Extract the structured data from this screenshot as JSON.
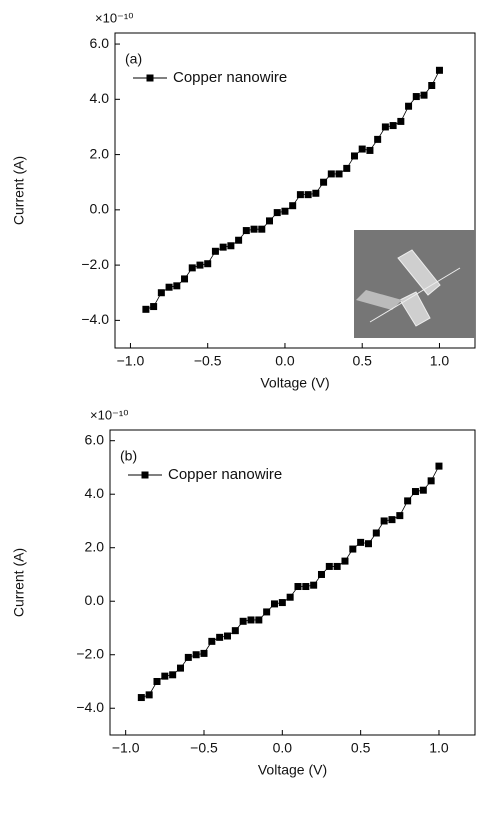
{
  "chart_data": [
    {
      "type": "line",
      "panel_label": "(a)",
      "y_multiplier": "×10⁻¹⁰",
      "xlabel": "Voltage (V)",
      "ylabel": "Current (A)",
      "legend": "upper left",
      "x": [
        -0.9,
        -0.85,
        -0.8,
        -0.75,
        -0.7,
        -0.65,
        -0.6,
        -0.55,
        -0.5,
        -0.45,
        -0.4,
        -0.35,
        -0.3,
        -0.25,
        -0.2,
        -0.15,
        -0.1,
        -0.05,
        0.0,
        0.05,
        0.1,
        0.15,
        0.2,
        0.25,
        0.3,
        0.35,
        0.4,
        0.45,
        0.5,
        0.55,
        0.6,
        0.65,
        0.7,
        0.75,
        0.8,
        0.85,
        0.9,
        0.95,
        1.0
      ],
      "series": [
        {
          "name": "Copper nanowire",
          "color": "#000000",
          "values": [
            -3.6,
            -3.5,
            -3.0,
            -2.8,
            -2.75,
            -2.5,
            -2.1,
            -2.0,
            -1.95,
            -1.5,
            -1.35,
            -1.3,
            -1.1,
            -0.75,
            -0.7,
            -0.7,
            -0.4,
            -0.1,
            -0.05,
            0.15,
            0.55,
            0.55,
            0.6,
            1.0,
            1.3,
            1.3,
            1.5,
            1.95,
            2.2,
            2.15,
            2.55,
            3.0,
            3.05,
            3.2,
            3.75,
            4.1,
            4.15,
            4.5,
            5.05
          ]
        }
      ],
      "xlim": [
        -1.1,
        1.23
      ],
      "ylim": [
        -5,
        6.4
      ],
      "xticks": [
        {
          "value": -1,
          "label": "−1.0"
        },
        {
          "value": -0.5,
          "label": "−0.5"
        },
        {
          "value": 0,
          "label": "0.0"
        },
        {
          "value": 0.5,
          "label": "0.5"
        },
        {
          "value": 1,
          "label": "1.0"
        }
      ],
      "yticks": [
        {
          "value": -4,
          "label": "−4.0"
        },
        {
          "value": -2,
          "label": "−2.0"
        },
        {
          "value": 0,
          "label": "0.0"
        },
        {
          "value": 2,
          "label": "2.0"
        },
        {
          "value": 4,
          "label": "4.0"
        },
        {
          "value": 6,
          "label": "6.0"
        }
      ]
    },
    {
      "type": "line",
      "panel_label": "(b)",
      "y_multiplier": "×10⁻¹⁰",
      "xlabel": "Voltage (V)",
      "ylabel": "Current (A)",
      "legend": "upper left",
      "x": [
        -0.9,
        -0.85,
        -0.8,
        -0.75,
        -0.7,
        -0.65,
        -0.6,
        -0.55,
        -0.5,
        -0.45,
        -0.4,
        -0.35,
        -0.3,
        -0.25,
        -0.2,
        -0.15,
        -0.1,
        -0.05,
        0.0,
        0.05,
        0.1,
        0.15,
        0.2,
        0.25,
        0.3,
        0.35,
        0.4,
        0.45,
        0.5,
        0.55,
        0.6,
        0.65,
        0.7,
        0.75,
        0.8,
        0.85,
        0.9,
        0.95,
        1.0
      ],
      "series": [
        {
          "name": "Copper nanowire",
          "color": "#000000",
          "values": [
            -3.6,
            -3.5,
            -3.0,
            -2.8,
            -2.75,
            -2.5,
            -2.1,
            -2.0,
            -1.95,
            -1.5,
            -1.35,
            -1.3,
            -1.1,
            -0.75,
            -0.7,
            -0.7,
            -0.4,
            -0.1,
            -0.05,
            0.15,
            0.55,
            0.55,
            0.6,
            1.0,
            1.3,
            1.3,
            1.5,
            1.95,
            2.2,
            2.15,
            2.55,
            3.0,
            3.05,
            3.2,
            3.75,
            4.1,
            4.15,
            4.5,
            5.05
          ]
        }
      ],
      "xlim": [
        -1.1,
        1.23
      ],
      "ylim": [
        -5,
        6.4
      ],
      "xticks": [
        {
          "value": -1,
          "label": "−1.0"
        },
        {
          "value": -0.5,
          "label": "−0.5"
        },
        {
          "value": 0,
          "label": "0.0"
        },
        {
          "value": 0.5,
          "label": "0.5"
        },
        {
          "value": 1,
          "label": "1.0"
        }
      ],
      "yticks": [
        {
          "value": -4,
          "label": "−4.0"
        },
        {
          "value": -2,
          "label": "−2.0"
        },
        {
          "value": 0,
          "label": "0.0"
        },
        {
          "value": 2,
          "label": "2.0"
        },
        {
          "value": 4,
          "label": "4.0"
        },
        {
          "value": 6,
          "label": "6.0"
        }
      ]
    }
  ]
}
